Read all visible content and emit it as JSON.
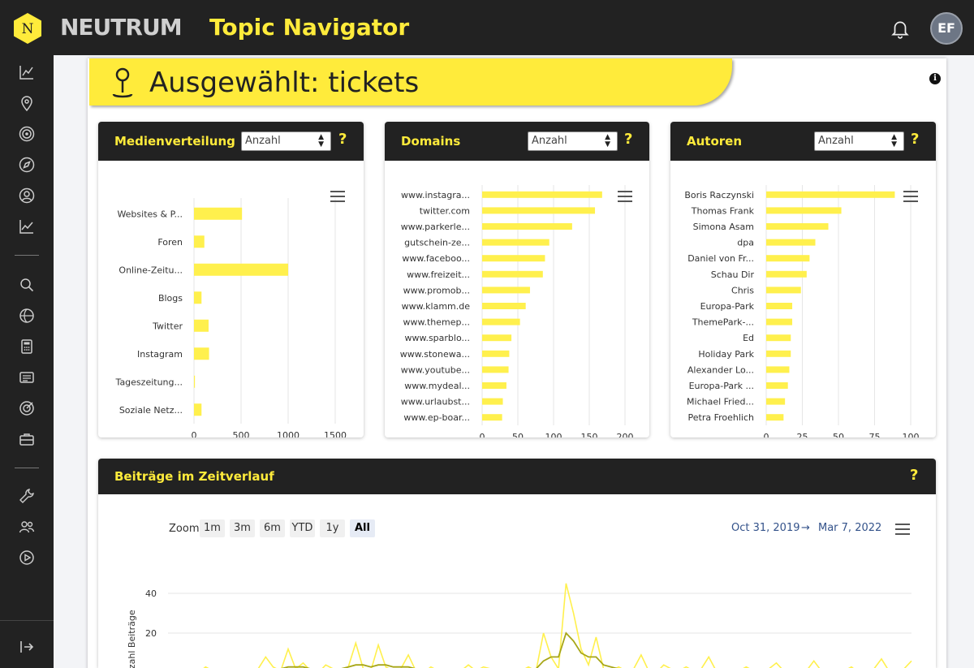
{
  "header": {
    "brand": "NEUTRUM",
    "app_title": "Topic Navigator",
    "user_initials": "EF"
  },
  "page": {
    "title": "Ausgewählt: tickets"
  },
  "colors": {
    "accent": "#ffeb3b",
    "dark": "#222222",
    "bar": "#fff04d",
    "line_dark": "#a7a617"
  },
  "sidebar": {
    "icons": [
      "chart-line-icon",
      "map-pin-icon",
      "target-icon",
      "compass-icon",
      "user-circle-icon",
      "trending-icon",
      "search-icon",
      "globe-icon",
      "calculator-icon",
      "newspaper-icon",
      "bullseye-icon",
      "briefcase-icon",
      "wrench-icon",
      "users-icon",
      "play-circle-icon",
      "logout-icon"
    ]
  },
  "cards": {
    "medien": {
      "title": "Medienverteilung",
      "select_value": "Anzahl",
      "help": "?"
    },
    "domains": {
      "title": "Domains",
      "select_value": "Anzahl",
      "help": "?"
    },
    "autoren": {
      "title": "Autoren",
      "select_value": "Anzahl",
      "help": "?"
    },
    "timeline": {
      "title": "Beiträge im Zeitverlauf",
      "help": "?"
    }
  },
  "timeline_controls": {
    "zoom_label": "Zoom",
    "buttons": [
      "1m",
      "3m",
      "6m",
      "YTD",
      "1y",
      "All"
    ],
    "active": "All",
    "date_from": "Oct 31, 2019",
    "arrow": "→",
    "date_to": "Mar 7, 2022"
  },
  "chart_data": [
    {
      "type": "bar",
      "orientation": "horizontal",
      "categories": [
        "Websites & P...",
        "Foren",
        "Online-Zeitu...",
        "Blogs",
        "Twitter",
        "Instagram",
        "Tageszeitung...",
        "Soziale Netz..."
      ],
      "values": [
        510,
        110,
        1000,
        80,
        155,
        160,
        10,
        80
      ],
      "xlabel": "Anzahl",
      "xticks": [
        "0",
        "500",
        "1000",
        "1500"
      ],
      "xlim": [
        0,
        1500
      ],
      "grid": true
    },
    {
      "type": "bar",
      "orientation": "horizontal",
      "categories": [
        "www.instagra...",
        "twitter.com",
        "www.parkerle...",
        "gutschein-ze...",
        "www.faceboo...",
        "www.freizeit...",
        "www.promob...",
        "www.klamm.de",
        "www.themep...",
        "www.sparblo...",
        "www.stonewa...",
        "www.youtube...",
        "www.mydeal...",
        "www.urlaubst...",
        "www.ep-boar..."
      ],
      "values": [
        168,
        158,
        126,
        94,
        88,
        85,
        67,
        61,
        53,
        41,
        38,
        37,
        34,
        29,
        28
      ],
      "xlabel": "Anzahl",
      "xticks": [
        "0",
        "50",
        "100",
        "150",
        "200"
      ],
      "xlim": [
        0,
        200
      ],
      "grid": true
    },
    {
      "type": "bar",
      "orientation": "horizontal",
      "categories": [
        "Boris Raczynski",
        "Thomas Frank",
        "Simona Asam",
        "dpa",
        "Daniel von Fr...",
        "Schau Dir",
        "Chris",
        "Europa-Park",
        "ThemePark-...",
        "Ed",
        "Holiday Park",
        "Alexander Lo...",
        "Europa-Park ...",
        "Michael Fried...",
        "Petra Froehlich"
      ],
      "values": [
        89,
        52,
        43,
        34,
        30,
        28,
        24,
        18,
        18,
        17,
        17,
        16,
        15,
        13,
        12
      ],
      "xlabel": "Anzahl",
      "xticks": [
        "0",
        "25",
        "50",
        "75",
        "100"
      ],
      "xlim": [
        0,
        100
      ],
      "grid": true
    },
    {
      "type": "line",
      "ylabel": "Anzahl Beiträge",
      "yticks": [
        "20",
        "40"
      ],
      "ylim": [
        0,
        50
      ],
      "series": [
        {
          "values": [
            1,
            0,
            2,
            1,
            0,
            3,
            1,
            0,
            2,
            1,
            0,
            1,
            2,
            8,
            3,
            1,
            12,
            2,
            5,
            1,
            0,
            4,
            2,
            1,
            3,
            15,
            2,
            1,
            14,
            3,
            1,
            2,
            9,
            1,
            0,
            3,
            1,
            2,
            0,
            1,
            4,
            1,
            3,
            2,
            1,
            0,
            2,
            1,
            3,
            1,
            20,
            8,
            2,
            45,
            30,
            12,
            4,
            18,
            2,
            1,
            3,
            1,
            2,
            9,
            1,
            0,
            4,
            2,
            1,
            3,
            1,
            2,
            8,
            1,
            0,
            2,
            1,
            3,
            1,
            0,
            2,
            5,
            1,
            0,
            2,
            1,
            6,
            1,
            0,
            2,
            1,
            3,
            0,
            1,
            2,
            7,
            1,
            0,
            2,
            6
          ]
        },
        {
          "values": [
            1,
            1,
            1,
            1,
            1,
            1,
            1,
            1,
            1,
            1,
            1,
            1,
            1,
            2,
            2,
            2,
            3,
            3,
            3,
            2,
            2,
            2,
            2,
            2,
            3,
            4,
            4,
            3,
            4,
            4,
            3,
            3,
            3,
            2,
            2,
            2,
            2,
            2,
            1,
            1,
            2,
            2,
            2,
            2,
            2,
            1,
            1,
            1,
            2,
            2,
            6,
            8,
            8,
            20,
            16,
            10,
            8,
            8,
            4,
            3,
            2,
            2,
            2,
            2,
            2,
            2,
            2,
            2,
            2,
            2,
            2,
            2,
            2,
            2,
            1,
            1,
            1,
            1,
            1,
            1,
            1,
            1,
            1,
            1,
            1,
            1,
            1,
            1,
            1,
            1,
            1,
            1,
            1,
            1,
            1,
            1,
            1,
            1,
            1,
            1
          ]
        }
      ]
    }
  ]
}
